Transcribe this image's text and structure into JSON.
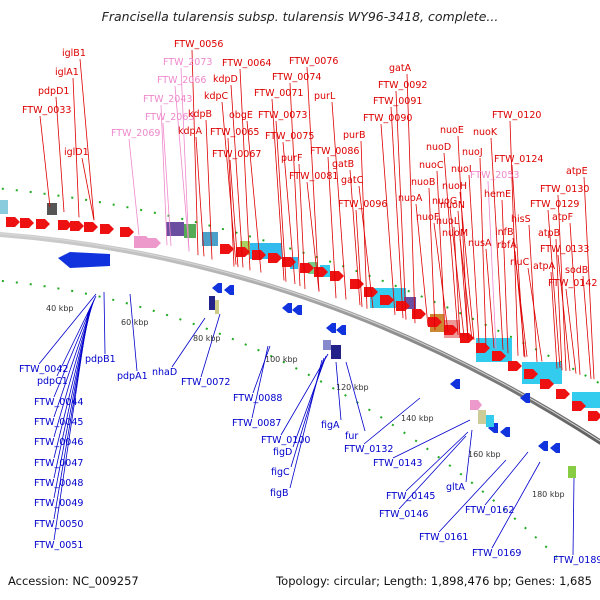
{
  "title": "Francisella tularensis subsp. tularensis WY96-3418, complete...",
  "footer": {
    "accession": "Accession: NC_009257",
    "summary": "Topology: circular; Length: 1,898,476 bp; Genes: 1,685"
  },
  "colors": {
    "forward_label": "#dd0000",
    "forward_label_pink": "#ee88cc",
    "reverse_label": "#0000cc",
    "backbone": "#888888",
    "tick": "#22aa22"
  },
  "scale_ticks": [
    "40 kbp",
    "60 kbp",
    "80 kbp",
    "100 kbp",
    "120 kbp",
    "140 kbp",
    "160 kbp",
    "180 kbp"
  ],
  "forward_labels": [
    {
      "text": "FTW_0056",
      "color": "red"
    },
    {
      "text": "FTW_2073",
      "color": "pink"
    },
    {
      "text": "FTW_0064",
      "color": "red"
    },
    {
      "text": "FTW_0076",
      "color": "red"
    },
    {
      "text": "iglB1",
      "color": "red"
    },
    {
      "text": "iglA1",
      "color": "red"
    },
    {
      "text": "pdpD1",
      "color": "red"
    },
    {
      "text": "FTW_0033",
      "color": "red"
    },
    {
      "text": "iglD1",
      "color": "red"
    },
    {
      "text": "FTW_2066",
      "color": "pink"
    },
    {
      "text": "FTW_2043",
      "color": "pink"
    },
    {
      "text": "FTW_2063",
      "color": "pink"
    },
    {
      "text": "FTW_2069",
      "color": "pink"
    },
    {
      "text": "kdpD",
      "color": "red"
    },
    {
      "text": "kdpC",
      "color": "red"
    },
    {
      "text": "kdpB",
      "color": "red"
    },
    {
      "text": "kdpA",
      "color": "red"
    },
    {
      "text": "FTW_0074",
      "color": "red"
    },
    {
      "text": "FTW_0071",
      "color": "red"
    },
    {
      "text": "obgE",
      "color": "red"
    },
    {
      "text": "FTW_0065",
      "color": "red"
    },
    {
      "text": "FTW_0067",
      "color": "red"
    },
    {
      "text": "FTW_0073",
      "color": "red"
    },
    {
      "text": "FTW_0075",
      "color": "red"
    },
    {
      "text": "purL",
      "color": "red"
    },
    {
      "text": "purF",
      "color": "red"
    },
    {
      "text": "gatA",
      "color": "red"
    },
    {
      "text": "FTW_0092",
      "color": "red"
    },
    {
      "text": "FTW_0091",
      "color": "red"
    },
    {
      "text": "FTW_0090",
      "color": "red"
    },
    {
      "text": "purB",
      "color": "red"
    },
    {
      "text": "FTW_0086",
      "color": "red"
    },
    {
      "text": "gatB",
      "color": "red"
    },
    {
      "text": "FTW_0081",
      "color": "red"
    },
    {
      "text": "gatC",
      "color": "red"
    },
    {
      "text": "FTW_0096",
      "color": "red"
    },
    {
      "text": "FTW_0120",
      "color": "red"
    },
    {
      "text": "nuoE",
      "color": "red"
    },
    {
      "text": "nuoK",
      "color": "red"
    },
    {
      "text": "nuoD",
      "color": "red"
    },
    {
      "text": "nuoJ",
      "color": "red"
    },
    {
      "text": "nuoC",
      "color": "red"
    },
    {
      "text": "nuoI",
      "color": "red"
    },
    {
      "text": "FTW_0124",
      "color": "red"
    },
    {
      "text": "nuoH",
      "color": "red"
    },
    {
      "text": "nuoB",
      "color": "red"
    },
    {
      "text": "FTW_2053",
      "color": "pink"
    },
    {
      "text": "atpE",
      "color": "red"
    },
    {
      "text": "nuoA",
      "color": "red"
    },
    {
      "text": "nuoG",
      "color": "red"
    },
    {
      "text": "hemE",
      "color": "red"
    },
    {
      "text": "FTW_0130",
      "color": "red"
    },
    {
      "text": "nuoN",
      "color": "red"
    },
    {
      "text": "FTW_0129",
      "color": "red"
    },
    {
      "text": "nuoF",
      "color": "red"
    },
    {
      "text": "nuoL",
      "color": "red"
    },
    {
      "text": "hisS",
      "color": "red"
    },
    {
      "text": "atpF",
      "color": "red"
    },
    {
      "text": "nuoM",
      "color": "red"
    },
    {
      "text": "infB",
      "color": "red"
    },
    {
      "text": "atpB",
      "color": "red"
    },
    {
      "text": "nusA",
      "color": "red"
    },
    {
      "text": "rbfA",
      "color": "red"
    },
    {
      "text": "FTW_0133",
      "color": "red"
    },
    {
      "text": "rluC",
      "color": "red"
    },
    {
      "text": "atpA",
      "color": "red"
    },
    {
      "text": "sodB",
      "color": "red"
    },
    {
      "text": "FTW_0142",
      "color": "red"
    }
  ],
  "reverse_labels": [
    "FTW_0042",
    "pdpB1",
    "pdpC1",
    "FTW_0044",
    "FTW_0045",
    "FTW_0046",
    "FTW_0047",
    "FTW_0048",
    "FTW_0049",
    "FTW_0050",
    "FTW_0051",
    "pdpA1",
    "nhaD",
    "FTW_0072",
    "FTW_0088",
    "FTW_0087",
    "FTW_0100",
    "figD",
    "figC",
    "figB",
    "figA",
    "fur",
    "FTW_0132",
    "FTW_0143",
    "FTW_0145",
    "gltA",
    "FTW_0146",
    "FTW_0162",
    "FTW_0161",
    "FTW_0169",
    "FTW_0189"
  ]
}
